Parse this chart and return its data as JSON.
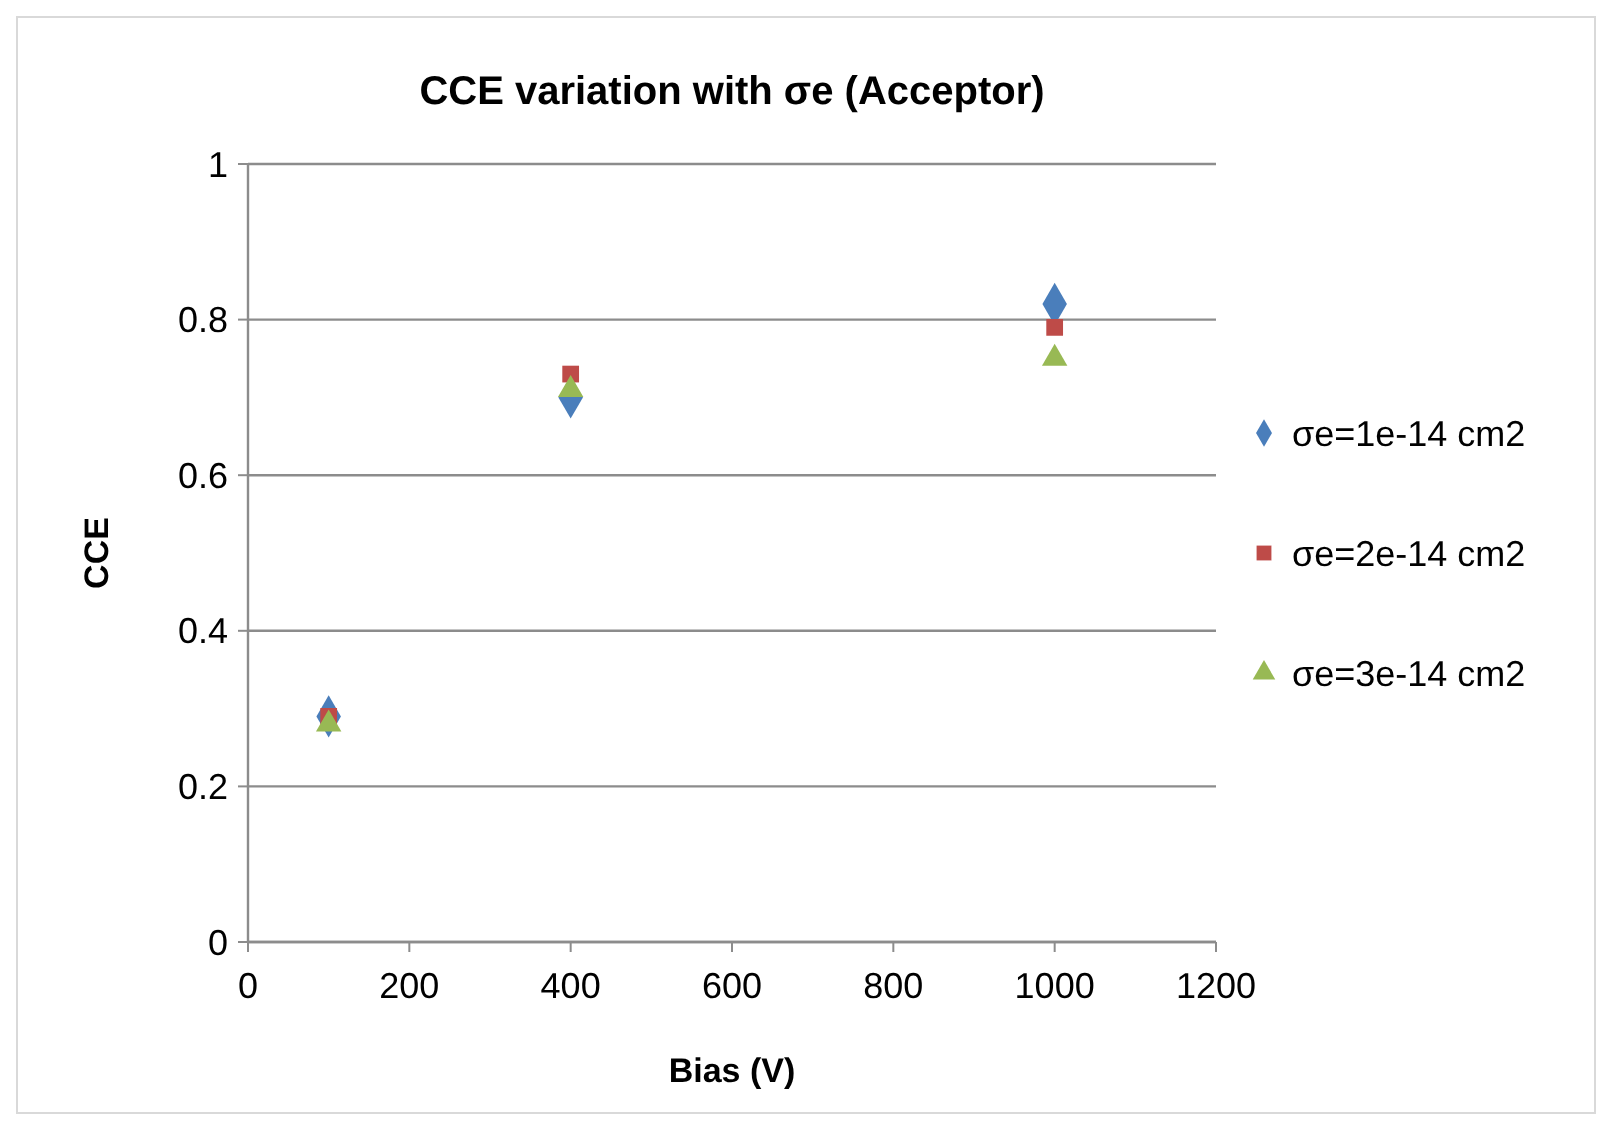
{
  "chart_data": {
    "type": "scatter",
    "title": "CCE variation with σe (Acceptor)",
    "xlabel": "Bias (V)",
    "ylabel": "CCE",
    "x": [
      100,
      400,
      1000
    ],
    "series": [
      {
        "name": "σe=1e-14 cm2",
        "color": "#4a7ebb",
        "values": [
          0.29,
          0.7,
          0.82
        ],
        "marker": "diamond"
      },
      {
        "name": "σe=2e-14 cm2",
        "color": "#be4b48",
        "values": [
          0.29,
          0.73,
          0.79
        ],
        "marker": "square"
      },
      {
        "name": "σe=3e-14 cm2",
        "color": "#98b954",
        "values": [
          0.28,
          0.71,
          0.75
        ],
        "marker": "triangle"
      }
    ],
    "xlim": [
      0,
      1200
    ],
    "xticks": [
      0,
      200,
      400,
      600,
      800,
      1000,
      1200
    ],
    "ylim": [
      0,
      1
    ],
    "yticks": [
      0,
      0.2,
      0.4,
      0.6,
      0.8,
      1
    ],
    "grid": "y",
    "legend": "right"
  }
}
